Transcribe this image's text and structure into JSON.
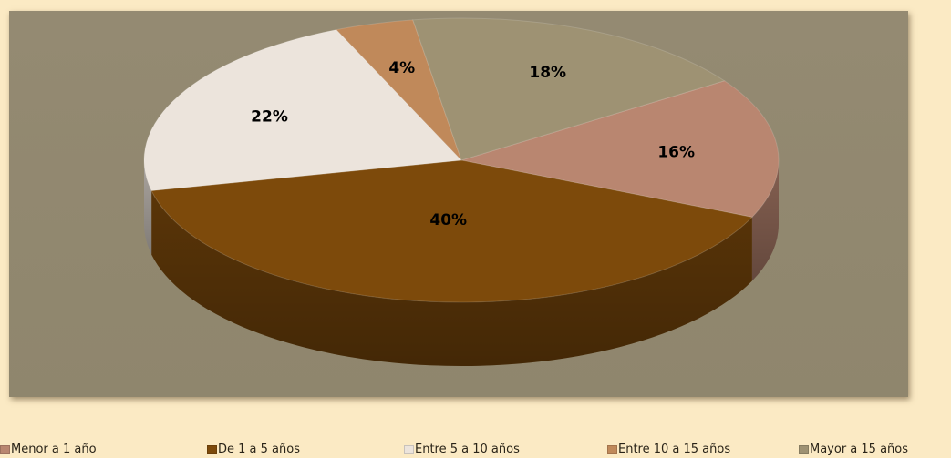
{
  "chart_data": {
    "type": "pie",
    "style": "3d",
    "legend_position": "bottom",
    "categories": [
      "Menor a 1 año",
      "De 1 a 5 años",
      "Entre 5 a 10 años",
      "Entre 10 a 15 años",
      "Mayor a 15 años"
    ],
    "values": [
      16,
      40,
      22,
      4,
      18
    ],
    "labels": [
      "16%",
      "40%",
      "22%",
      "4%",
      "18%"
    ],
    "colors": [
      "#b98670",
      "#7d4a0b",
      "#ece4dc",
      "#c0895a",
      "#9e9273"
    ],
    "background": "#fbeac4",
    "plot_background": "#928970"
  }
}
